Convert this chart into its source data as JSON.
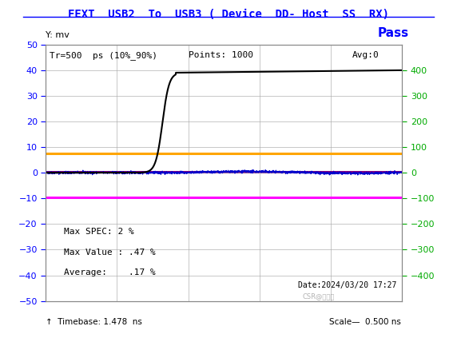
{
  "title": "FEXT  USB2  To  USB3 ( Device  DD- Host  SS  RX)",
  "title_color": "#0000FF",
  "bg_color": "#FFFFFF",
  "plot_bg_color": "#FFFFFF",
  "grid_color": "#AAAAAA",
  "ylim": [
    -50,
    50
  ],
  "ylim_right": [
    -500,
    500
  ],
  "xlim": [
    0,
    10
  ],
  "ylabel_left": "Y: mv",
  "ylabel_right_ticks": [
    -400,
    -300,
    -200,
    -100,
    0,
    100,
    200,
    300,
    400
  ],
  "yticks_left": [
    -50,
    -40,
    -30,
    -20,
    -10,
    0,
    10,
    20,
    30,
    40,
    50
  ],
  "left_tick_color": "#0000FF",
  "right_tick_color": "#00AA00",
  "pass_label": "Pass",
  "pass_color": "#0000FF",
  "info_text_top": "Tr=500  ps (10%_90%)",
  "info_text_mid": "Points: 1000",
  "info_text_avg": "Avg:0",
  "orange_hline_y": 7.5,
  "magenta_hline_y": -9.5,
  "purple_hline_y": 0.3,
  "annotations": [
    "Max SPEC: 2 %",
    "Max Value : .47 %",
    "Average:    .17 %"
  ],
  "date_text": "Date:2024/03/20 17:27",
  "timebase_text": "↑  Timebase: 1.478  ns",
  "scale_text": "Scale—  0.500 ns",
  "watermark": "CSR@电路山",
  "orange_color": "#FFA500",
  "magenta_color": "#FF00FF",
  "purple_color": "#800080",
  "blue_signal_color": "#0000CC",
  "black_signal_color": "#000000"
}
